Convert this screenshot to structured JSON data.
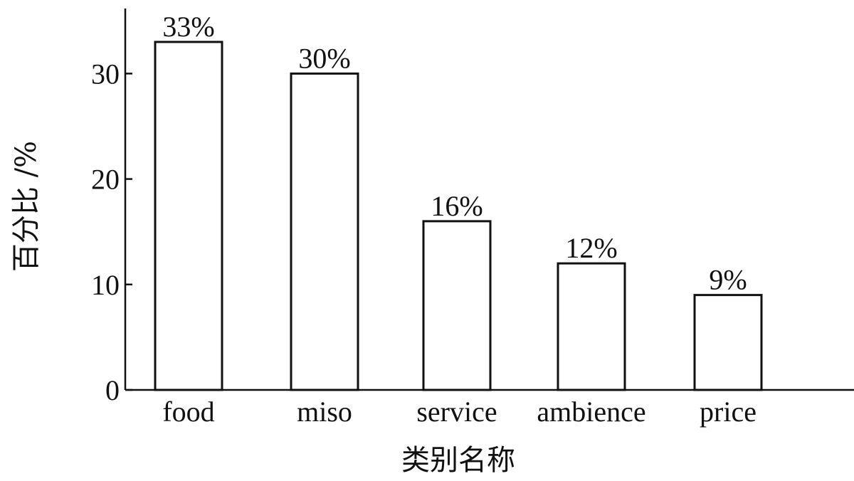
{
  "chart_data": {
    "type": "bar",
    "categories": [
      "food",
      "miso",
      "service",
      "ambience",
      "price"
    ],
    "values": [
      33,
      30,
      16,
      12,
      9
    ],
    "value_labels": [
      "33%",
      "30%",
      "16%",
      "12%",
      "9%"
    ],
    "title": "",
    "xlabel": "类别名称",
    "ylabel": "百分比 /%",
    "ylim": [
      0,
      37
    ],
    "yticks": [
      0,
      10,
      20,
      30
    ],
    "grid": false,
    "bar_fill": "#ffffff",
    "bar_edge": "#111111"
  }
}
